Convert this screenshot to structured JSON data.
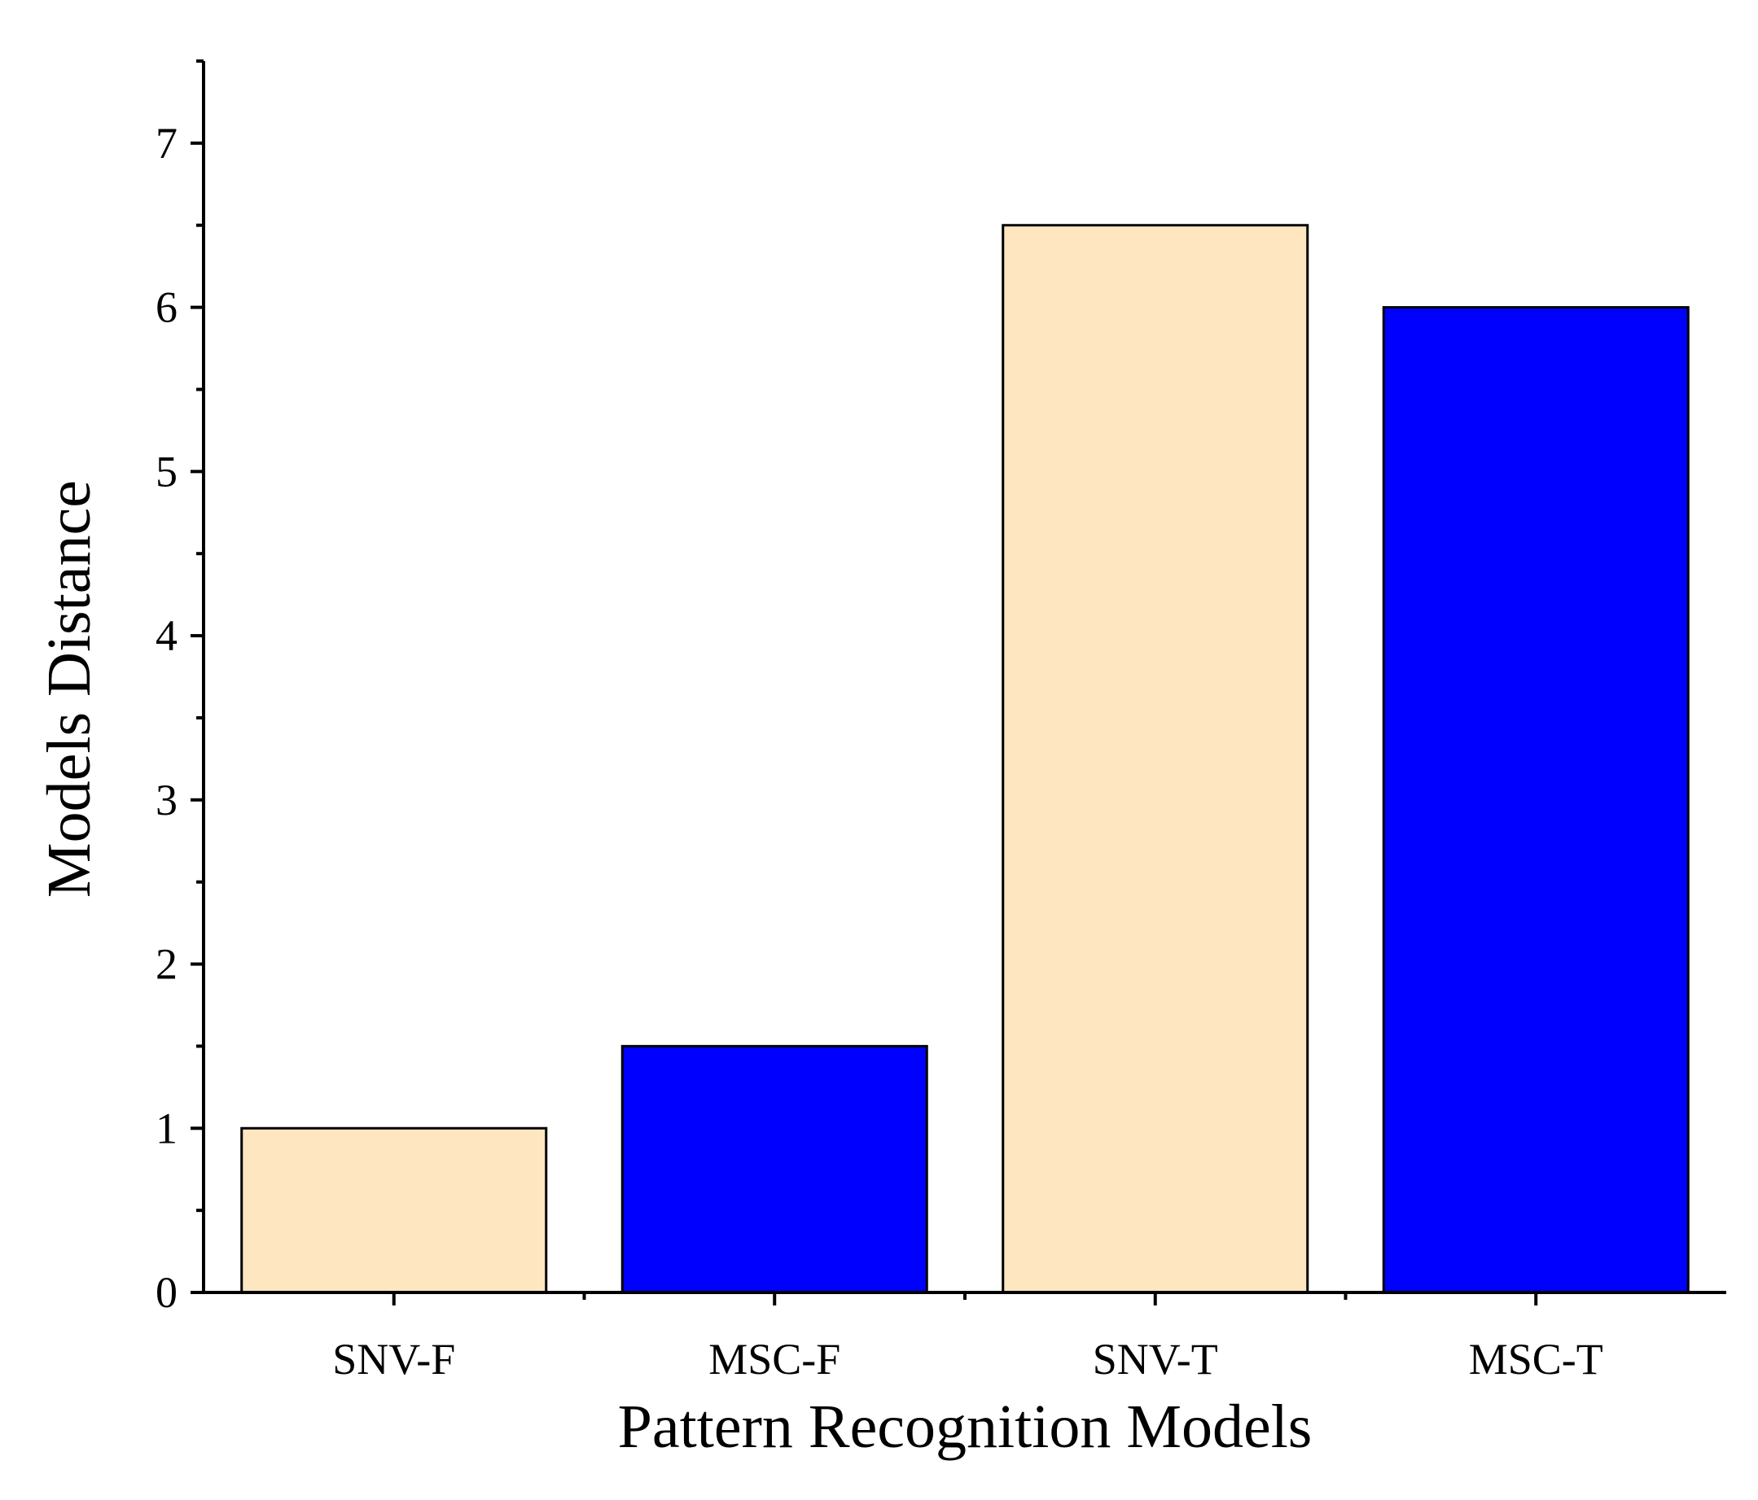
{
  "chart_data": {
    "type": "bar",
    "title": "",
    "xlabel": "Pattern Recognition Models",
    "ylabel": "Models Distance",
    "categories": [
      "SNV-F",
      "MSC-F",
      "SNV-T",
      "MSC-T"
    ],
    "values": [
      1.0,
      1.5,
      6.5,
      6.0
    ],
    "bar_colors": [
      "#FDE6C0",
      "#0000FF",
      "#FDE6C0",
      "#0000FF"
    ],
    "ylim": [
      0,
      7.5
    ],
    "y_ticks": [
      0,
      1,
      2,
      3,
      4,
      5,
      6,
      7
    ],
    "y_tick_labels": [
      "0",
      "1",
      "2",
      "3",
      "4",
      "5",
      "6",
      "7"
    ],
    "y_minor_step": 0.5,
    "grid": false,
    "legend": "none"
  }
}
